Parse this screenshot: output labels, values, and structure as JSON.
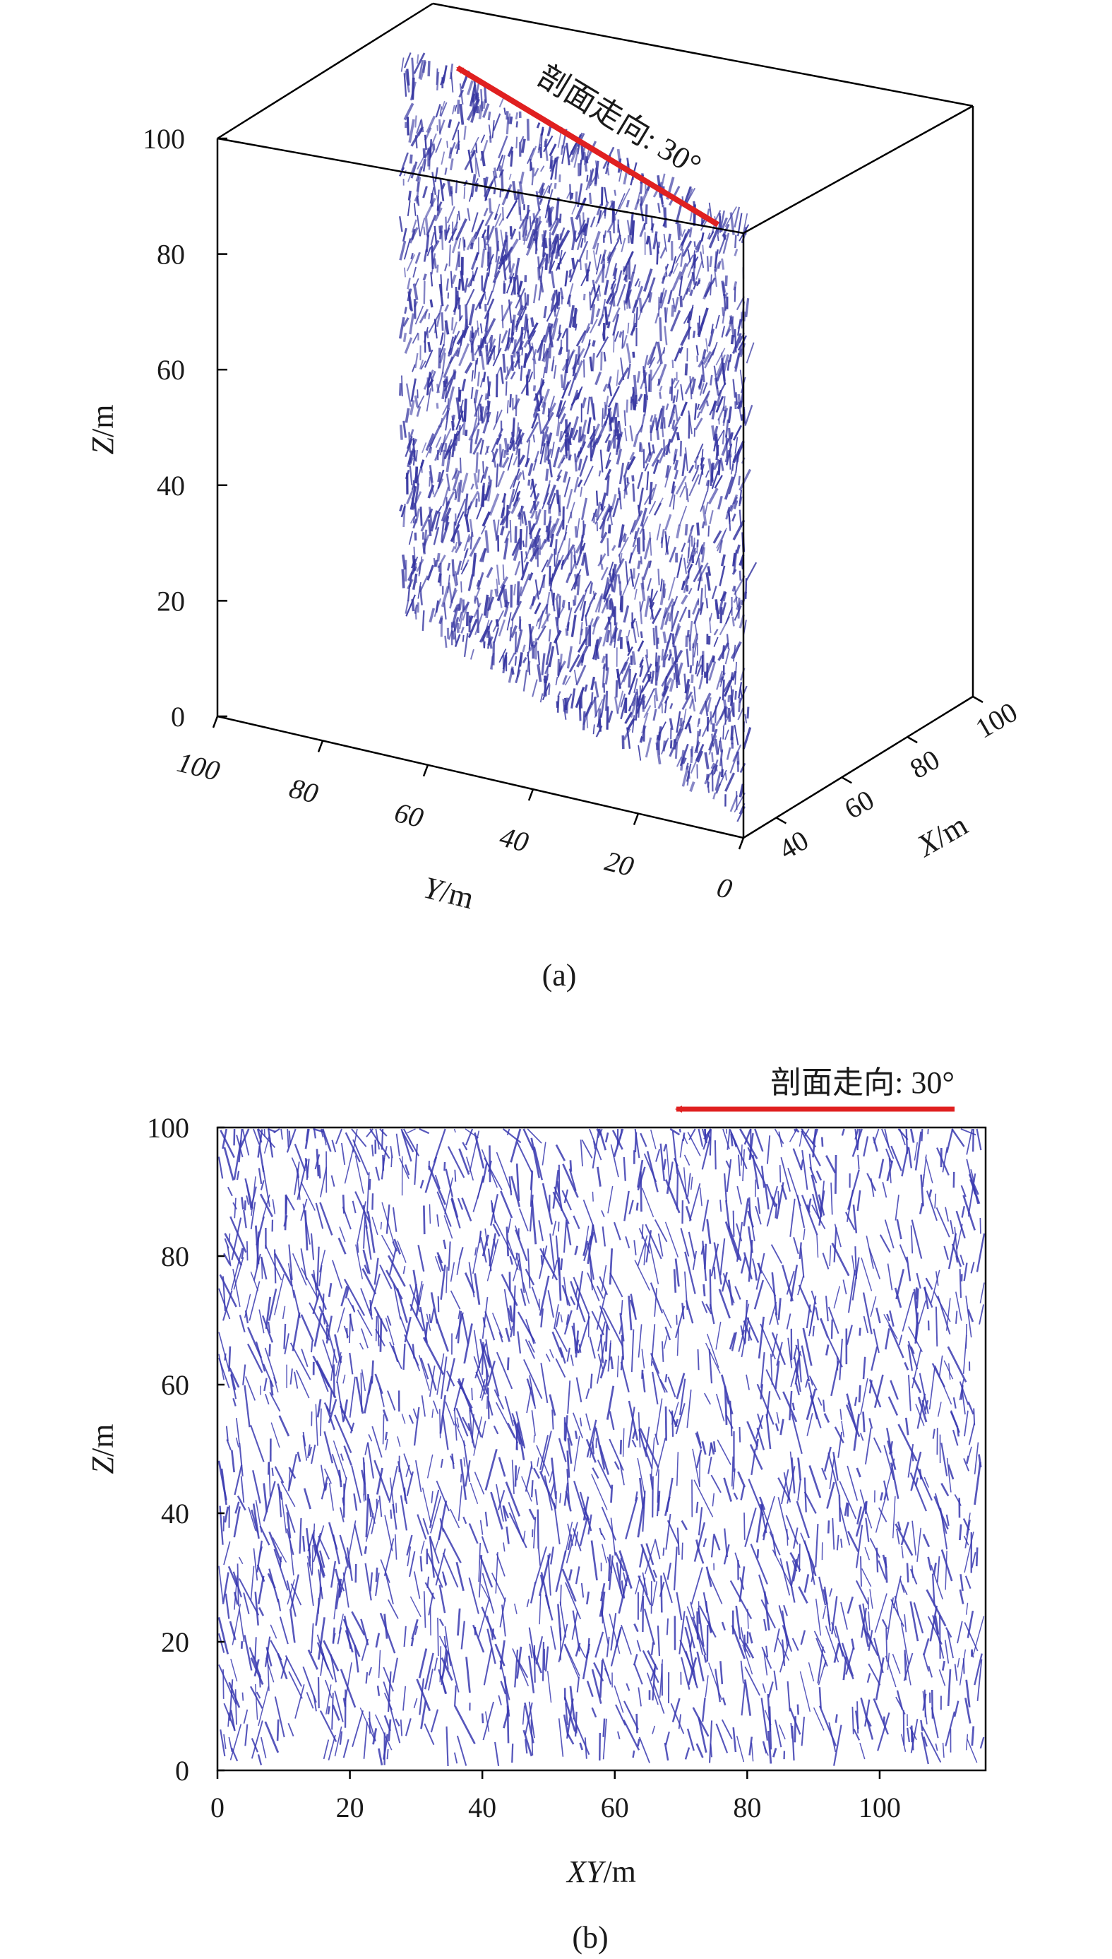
{
  "chart_data": [
    {
      "panel_label": "(a)",
      "type": "3d-fracture-network",
      "annotation": "剖面走向: 30°",
      "zlabel": {
        "var": "Z",
        "unit": "/m"
      },
      "ylabel": {
        "var": "Y",
        "unit": "/m"
      },
      "xlabel": {
        "var": "X",
        "unit": "/m"
      },
      "z_ticks": [
        "0",
        "20",
        "40",
        "60",
        "80",
        "100"
      ],
      "y_ticks": [
        "100",
        "80",
        "60",
        "40",
        "20",
        "0"
      ],
      "x_ticks": [
        "40",
        "60",
        "80",
        "100"
      ],
      "zlim": [
        0,
        100
      ],
      "ylim": [
        0,
        100
      ],
      "xlim": [
        30,
        100
      ],
      "colors": {
        "fracture": "#3535a0",
        "annotation_arrow": "#e02020",
        "box": "#000000"
      }
    },
    {
      "panel_label": "(b)",
      "type": "2d-fracture-trace-section",
      "annotation": "剖面走向: 30°",
      "xlabel": {
        "var": "XY",
        "unit": "/m"
      },
      "ylabel": {
        "var": "Z",
        "unit": "/m"
      },
      "x_ticks": [
        "0",
        "20",
        "40",
        "60",
        "80",
        "100"
      ],
      "y_ticks": [
        "0",
        "20",
        "40",
        "60",
        "80",
        "100"
      ],
      "xlim": [
        0,
        116
      ],
      "ylim": [
        0,
        100
      ],
      "colors": {
        "fracture": "#3a3ab0",
        "annotation_arrow": "#e02020",
        "frame": "#000000"
      }
    }
  ]
}
